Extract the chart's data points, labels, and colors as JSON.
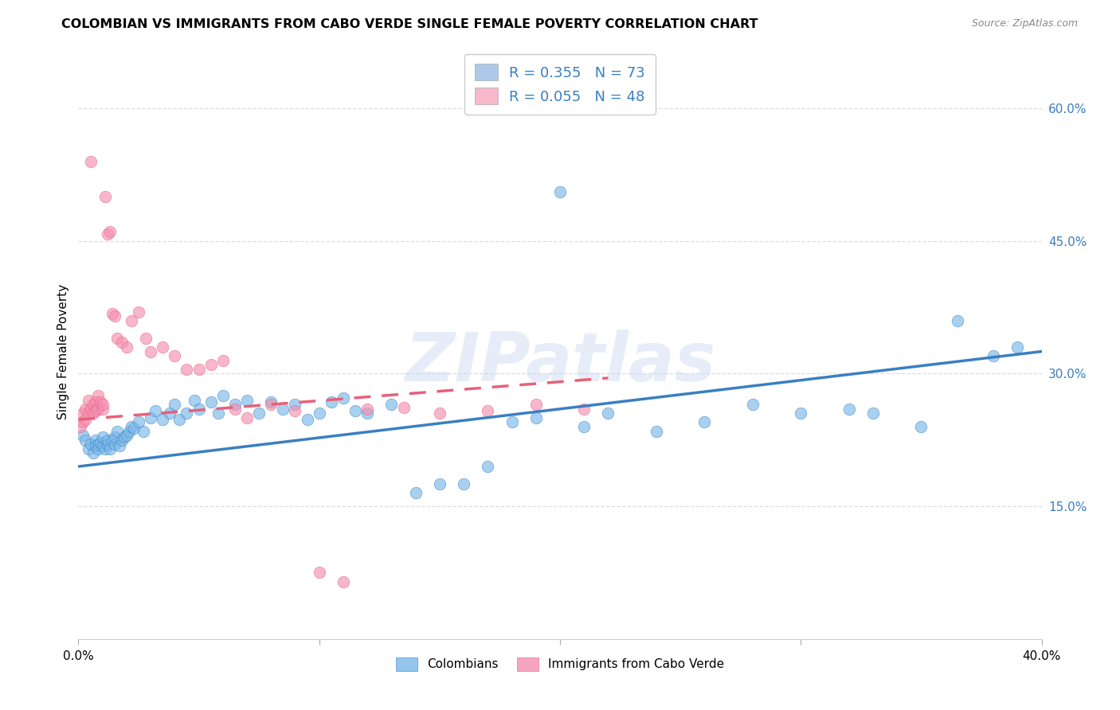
{
  "title": "COLOMBIAN VS IMMIGRANTS FROM CABO VERDE SINGLE FEMALE POVERTY CORRELATION CHART",
  "source": "Source: ZipAtlas.com",
  "ylabel": "Single Female Poverty",
  "right_yticks": [
    "60.0%",
    "45.0%",
    "30.0%",
    "15.0%"
  ],
  "right_ytick_vals": [
    0.6,
    0.45,
    0.3,
    0.15
  ],
  "legend_label1": "R = 0.355   N = 73",
  "legend_label2": "R = 0.055   N = 48",
  "legend_color1": "#aec8e8",
  "legend_color2": "#f9b8cc",
  "scatter_color1": "#7ab8e8",
  "scatter_color2": "#f48fb1",
  "line_color1": "#3a7fc1",
  "line_color2": "#e8607a",
  "watermark_text": "ZIPatlas",
  "bottom_label1": "Colombians",
  "bottom_label2": "Immigrants from Cabo Verde",
  "xlim": [
    0.0,
    0.4
  ],
  "ylim": [
    0.0,
    0.65
  ],
  "grid_color": "#dddddd",
  "grid_yticks": [
    0.15,
    0.3,
    0.45,
    0.6
  ],
  "line1_x0": 0.0,
  "line1_x1": 0.4,
  "line1_y0": 0.195,
  "line1_y1": 0.325,
  "line2_x0": 0.0,
  "line2_x1": 0.22,
  "line2_y0": 0.248,
  "line2_y1": 0.295,
  "blue_x": [
    0.002,
    0.003,
    0.004,
    0.005,
    0.006,
    0.007,
    0.007,
    0.008,
    0.008,
    0.009,
    0.01,
    0.01,
    0.011,
    0.012,
    0.012,
    0.013,
    0.014,
    0.015,
    0.015,
    0.016,
    0.017,
    0.018,
    0.019,
    0.02,
    0.021,
    0.022,
    0.023,
    0.025,
    0.027,
    0.03,
    0.032,
    0.035,
    0.038,
    0.04,
    0.042,
    0.045,
    0.048,
    0.05,
    0.055,
    0.058,
    0.06,
    0.065,
    0.07,
    0.075,
    0.08,
    0.085,
    0.09,
    0.095,
    0.1,
    0.105,
    0.11,
    0.115,
    0.12,
    0.13,
    0.14,
    0.15,
    0.16,
    0.17,
    0.18,
    0.19,
    0.2,
    0.21,
    0.22,
    0.24,
    0.26,
    0.28,
    0.3,
    0.32,
    0.33,
    0.35,
    0.365,
    0.38,
    0.39
  ],
  "blue_y": [
    0.23,
    0.225,
    0.215,
    0.22,
    0.21,
    0.225,
    0.218,
    0.22,
    0.215,
    0.222,
    0.218,
    0.228,
    0.215,
    0.22,
    0.225,
    0.215,
    0.225,
    0.22,
    0.228,
    0.235,
    0.218,
    0.225,
    0.228,
    0.23,
    0.235,
    0.24,
    0.238,
    0.245,
    0.235,
    0.25,
    0.258,
    0.248,
    0.255,
    0.265,
    0.248,
    0.255,
    0.27,
    0.26,
    0.268,
    0.255,
    0.275,
    0.265,
    0.27,
    0.255,
    0.268,
    0.26,
    0.265,
    0.248,
    0.255,
    0.268,
    0.272,
    0.258,
    0.255,
    0.265,
    0.165,
    0.175,
    0.175,
    0.195,
    0.245,
    0.25,
    0.505,
    0.24,
    0.255,
    0.235,
    0.245,
    0.265,
    0.255,
    0.26,
    0.255,
    0.24,
    0.36,
    0.32,
    0.33
  ],
  "pink_x": [
    0.001,
    0.002,
    0.002,
    0.003,
    0.003,
    0.004,
    0.004,
    0.005,
    0.005,
    0.006,
    0.006,
    0.007,
    0.007,
    0.008,
    0.008,
    0.009,
    0.01,
    0.01,
    0.011,
    0.012,
    0.013,
    0.014,
    0.015,
    0.016,
    0.018,
    0.02,
    0.022,
    0.025,
    0.028,
    0.03,
    0.035,
    0.04,
    0.045,
    0.05,
    0.055,
    0.06,
    0.065,
    0.07,
    0.08,
    0.09,
    0.1,
    0.11,
    0.12,
    0.135,
    0.15,
    0.17,
    0.19,
    0.21
  ],
  "pink_y": [
    0.24,
    0.245,
    0.255,
    0.26,
    0.248,
    0.255,
    0.27,
    0.26,
    0.54,
    0.265,
    0.255,
    0.268,
    0.258,
    0.275,
    0.26,
    0.268,
    0.26,
    0.265,
    0.5,
    0.458,
    0.46,
    0.368,
    0.365,
    0.34,
    0.335,
    0.33,
    0.36,
    0.37,
    0.34,
    0.325,
    0.33,
    0.32,
    0.305,
    0.305,
    0.31,
    0.315,
    0.26,
    0.25,
    0.265,
    0.258,
    0.075,
    0.065,
    0.26,
    0.262,
    0.255,
    0.258,
    0.265,
    0.26
  ]
}
